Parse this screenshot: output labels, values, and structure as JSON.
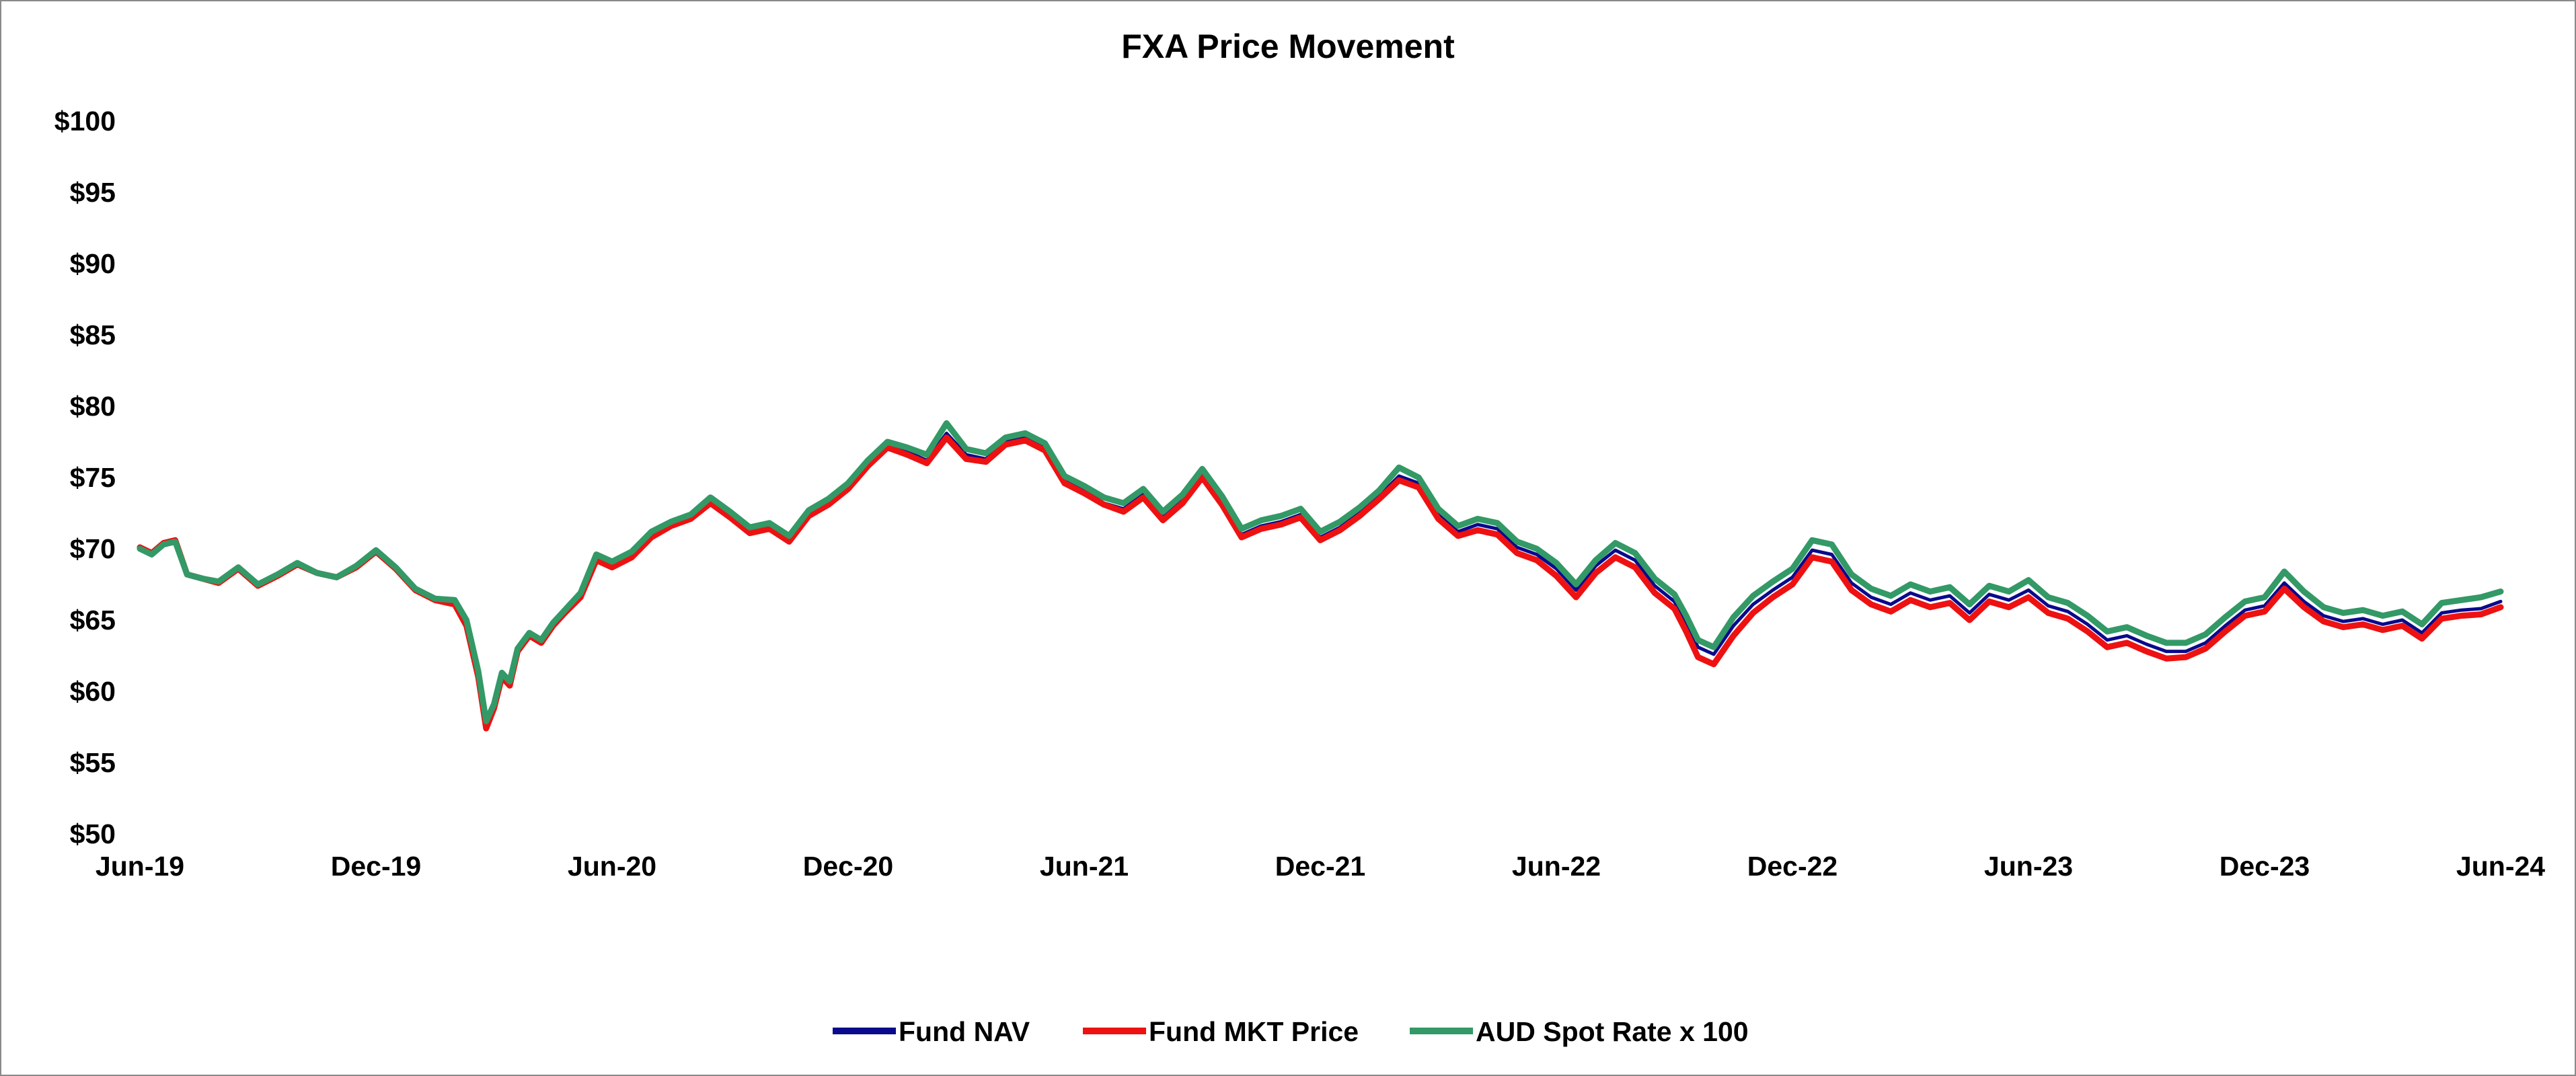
{
  "chart_data": {
    "type": "line",
    "title": "FXA Price Movement",
    "xlabel": "",
    "ylabel": "",
    "ylim": [
      50,
      100
    ],
    "y_ticks": [
      50,
      55,
      60,
      65,
      70,
      75,
      80,
      85,
      90,
      95,
      100
    ],
    "y_tick_labels": [
      "$50",
      "$55",
      "$60",
      "$65",
      "$70",
      "$75",
      "$80",
      "$85",
      "$90",
      "$95",
      "$100"
    ],
    "x_range": [
      0,
      60
    ],
    "x_ticks": [
      0,
      6,
      12,
      18,
      24,
      30,
      36,
      42,
      48,
      54,
      60
    ],
    "x_tick_labels": [
      "Jun-19",
      "Dec-19",
      "Jun-20",
      "Dec-20",
      "Jun-21",
      "Dec-21",
      "Jun-22",
      "Dec-22",
      "Jun-23",
      "Dec-23",
      "Jun-24"
    ],
    "x_unit": "months since Jun-19",
    "grid": false,
    "legend_position": "bottom",
    "series": [
      {
        "name": "Fund NAV",
        "color": "#0a0a8c",
        "x": [
          0,
          0.3,
          0.6,
          0.9,
          1.2,
          1.6,
          2.0,
          2.5,
          3.0,
          3.5,
          4.0,
          4.5,
          5.0,
          5.5,
          6.0,
          6.5,
          7.0,
          7.5,
          8.0,
          8.3,
          8.6,
          8.8,
          9.0,
          9.2,
          9.4,
          9.6,
          9.9,
          10.2,
          10.5,
          10.8,
          11.2,
          11.6,
          12.0,
          12.5,
          13.0,
          13.5,
          14.0,
          14.5,
          15.0,
          15.5,
          16.0,
          16.5,
          17.0,
          17.5,
          18.0,
          18.5,
          19.0,
          19.5,
          20.0,
          20.5,
          21.0,
          21.5,
          22.0,
          22.5,
          23.0,
          23.5,
          24.0,
          24.5,
          25.0,
          25.5,
          26.0,
          26.5,
          27.0,
          27.5,
          28.0,
          28.5,
          29.0,
          29.5,
          30.0,
          30.5,
          31.0,
          31.5,
          32.0,
          32.5,
          33.0,
          33.5,
          34.0,
          34.5,
          35.0,
          35.5,
          36.0,
          36.5,
          37.0,
          37.5,
          38.0,
          38.5,
          39.0,
          39.3,
          39.6,
          40.0,
          40.5,
          41.0,
          41.5,
          42.0,
          42.5,
          43.0,
          43.5,
          44.0,
          44.5,
          45.0,
          45.5,
          46.0,
          46.5,
          47.0,
          47.5,
          48.0,
          48.5,
          49.0,
          49.5,
          50.0,
          50.5,
          51.0,
          51.5,
          52.0,
          52.5,
          53.0,
          53.5,
          54.0,
          54.5,
          55.0,
          55.5,
          56.0,
          56.5,
          57.0,
          57.5,
          58.0,
          58.5,
          59.0,
          59.5,
          60.0
        ],
        "values": [
          70.0,
          69.6,
          70.3,
          70.5,
          68.2,
          67.9,
          67.7,
          68.6,
          67.4,
          68.1,
          68.9,
          68.3,
          68.0,
          68.7,
          69.8,
          68.6,
          67.1,
          66.4,
          66.2,
          64.8,
          61.2,
          57.6,
          58.9,
          61.1,
          60.5,
          62.8,
          63.9,
          63.4,
          64.6,
          65.5,
          66.6,
          69.3,
          68.8,
          69.5,
          70.9,
          71.6,
          72.1,
          73.3,
          72.3,
          71.2,
          71.5,
          70.6,
          72.4,
          73.2,
          74.3,
          75.9,
          77.2,
          76.8,
          76.2,
          78.1,
          76.6,
          76.3,
          77.5,
          77.8,
          77.1,
          74.8,
          74.1,
          73.2,
          72.8,
          73.8,
          72.2,
          73.4,
          75.2,
          73.3,
          71.0,
          71.6,
          71.9,
          72.4,
          70.8,
          71.5,
          72.5,
          73.7,
          75.1,
          74.6,
          72.4,
          71.2,
          71.7,
          71.4,
          70.1,
          69.6,
          68.6,
          67.1,
          68.8,
          69.9,
          69.2,
          67.4,
          66.3,
          64.8,
          63.1,
          62.6,
          64.6,
          66.1,
          67.1,
          68.0,
          69.9,
          69.6,
          67.6,
          66.6,
          66.1,
          66.9,
          66.4,
          66.7,
          65.5,
          66.8,
          66.4,
          67.1,
          66.0,
          65.6,
          64.7,
          63.6,
          63.9,
          63.3,
          62.8,
          62.8,
          63.4,
          64.6,
          65.7,
          66.0,
          67.6,
          66.3,
          65.3,
          64.9,
          65.1,
          64.7,
          65.0,
          64.1,
          65.5,
          65.7,
          65.8,
          66.3
        ],
        "stroke_width": 5
      },
      {
        "name": "Fund MKT Price",
        "color": "#ee1111",
        "x": [
          0,
          0.3,
          0.6,
          0.9,
          1.2,
          1.6,
          2.0,
          2.5,
          3.0,
          3.5,
          4.0,
          4.5,
          5.0,
          5.5,
          6.0,
          6.5,
          7.0,
          7.5,
          8.0,
          8.3,
          8.6,
          8.8,
          9.0,
          9.2,
          9.4,
          9.6,
          9.9,
          10.2,
          10.5,
          10.8,
          11.2,
          11.6,
          12.0,
          12.5,
          13.0,
          13.5,
          14.0,
          14.5,
          15.0,
          15.5,
          16.0,
          16.5,
          17.0,
          17.5,
          18.0,
          18.5,
          19.0,
          19.5,
          20.0,
          20.5,
          21.0,
          21.5,
          22.0,
          22.5,
          23.0,
          23.5,
          24.0,
          24.5,
          25.0,
          25.5,
          26.0,
          26.5,
          27.0,
          27.5,
          28.0,
          28.5,
          29.0,
          29.5,
          30.0,
          30.5,
          31.0,
          31.5,
          32.0,
          32.5,
          33.0,
          33.5,
          34.0,
          34.5,
          35.0,
          35.5,
          36.0,
          36.5,
          37.0,
          37.5,
          38.0,
          38.5,
          39.0,
          39.3,
          39.6,
          40.0,
          40.5,
          41.0,
          41.5,
          42.0,
          42.5,
          43.0,
          43.5,
          44.0,
          44.5,
          45.0,
          45.5,
          46.0,
          46.5,
          47.0,
          47.5,
          48.0,
          48.5,
          49.0,
          49.5,
          50.0,
          50.5,
          51.0,
          51.5,
          52.0,
          52.5,
          53.0,
          53.5,
          54.0,
          54.5,
          55.0,
          55.5,
          56.0,
          56.5,
          57.0,
          57.5,
          58.0,
          58.5,
          59.0,
          59.5,
          60.0
        ],
        "values": [
          70.1,
          69.7,
          70.4,
          70.6,
          68.2,
          67.9,
          67.6,
          68.6,
          67.4,
          68.1,
          68.9,
          68.3,
          68.0,
          68.7,
          69.8,
          68.6,
          67.1,
          66.4,
          66.1,
          64.6,
          61.0,
          57.4,
          58.8,
          61.0,
          60.4,
          62.8,
          63.9,
          63.4,
          64.6,
          65.5,
          66.6,
          69.2,
          68.7,
          69.4,
          70.8,
          71.6,
          72.1,
          73.2,
          72.2,
          71.1,
          71.4,
          70.5,
          72.3,
          73.1,
          74.2,
          75.8,
          77.1,
          76.6,
          76.0,
          77.8,
          76.3,
          76.1,
          77.3,
          77.6,
          76.9,
          74.6,
          73.9,
          73.1,
          72.6,
          73.6,
          72.0,
          73.2,
          75.0,
          73.1,
          70.8,
          71.4,
          71.7,
          72.2,
          70.6,
          71.3,
          72.3,
          73.5,
          74.8,
          74.3,
          72.1,
          70.9,
          71.3,
          71.0,
          69.7,
          69.2,
          68.1,
          66.6,
          68.3,
          69.4,
          68.7,
          66.9,
          65.8,
          64.2,
          62.4,
          61.9,
          63.9,
          65.5,
          66.6,
          67.5,
          69.4,
          69.1,
          67.1,
          66.1,
          65.6,
          66.4,
          65.9,
          66.2,
          65.0,
          66.3,
          65.9,
          66.6,
          65.5,
          65.1,
          64.2,
          63.1,
          63.4,
          62.8,
          62.3,
          62.4,
          63.0,
          64.2,
          65.3,
          65.6,
          67.2,
          65.9,
          64.9,
          64.5,
          64.7,
          64.3,
          64.6,
          63.7,
          65.1,
          65.3,
          65.4,
          65.9
        ],
        "stroke_width": 9
      },
      {
        "name": "AUD Spot Rate x 100",
        "color": "#339966",
        "x": [
          0,
          0.3,
          0.6,
          0.9,
          1.2,
          1.6,
          2.0,
          2.5,
          3.0,
          3.5,
          4.0,
          4.5,
          5.0,
          5.5,
          6.0,
          6.5,
          7.0,
          7.5,
          8.0,
          8.3,
          8.6,
          8.8,
          9.0,
          9.2,
          9.4,
          9.6,
          9.9,
          10.2,
          10.5,
          10.8,
          11.2,
          11.6,
          12.0,
          12.5,
          13.0,
          13.5,
          14.0,
          14.5,
          15.0,
          15.5,
          16.0,
          16.5,
          17.0,
          17.5,
          18.0,
          18.5,
          19.0,
          19.5,
          20.0,
          20.5,
          21.0,
          21.5,
          22.0,
          22.5,
          23.0,
          23.5,
          24.0,
          24.5,
          25.0,
          25.5,
          26.0,
          26.5,
          27.0,
          27.5,
          28.0,
          28.5,
          29.0,
          29.5,
          30.0,
          30.5,
          31.0,
          31.5,
          32.0,
          32.5,
          33.0,
          33.5,
          34.0,
          34.5,
          35.0,
          35.5,
          36.0,
          36.5,
          37.0,
          37.5,
          38.0,
          38.5,
          39.0,
          39.3,
          39.6,
          40.0,
          40.5,
          41.0,
          41.5,
          42.0,
          42.5,
          43.0,
          43.5,
          44.0,
          44.5,
          45.0,
          45.5,
          46.0,
          46.5,
          47.0,
          47.5,
          48.0,
          48.5,
          49.0,
          49.5,
          50.0,
          50.5,
          51.0,
          51.5,
          52.0,
          52.5,
          53.0,
          53.5,
          54.0,
          54.5,
          55.0,
          55.5,
          56.0,
          56.5,
          57.0,
          57.5,
          58.0,
          58.5,
          59.0,
          59.5,
          60.0
        ],
        "values": [
          70.0,
          69.6,
          70.3,
          70.5,
          68.2,
          67.9,
          67.7,
          68.7,
          67.5,
          68.2,
          69.0,
          68.3,
          68.0,
          68.8,
          69.9,
          68.7,
          67.2,
          66.5,
          66.4,
          65.0,
          61.4,
          57.9,
          59.1,
          61.3,
          60.7,
          63.0,
          64.1,
          63.6,
          64.8,
          65.7,
          66.9,
          69.6,
          69.1,
          69.8,
          71.2,
          71.9,
          72.4,
          73.6,
          72.6,
          71.5,
          71.8,
          70.9,
          72.7,
          73.5,
          74.6,
          76.2,
          77.5,
          77.1,
          76.6,
          78.8,
          77.0,
          76.7,
          77.8,
          78.1,
          77.4,
          75.1,
          74.4,
          73.6,
          73.2,
          74.2,
          72.6,
          73.8,
          75.6,
          73.7,
          71.4,
          72.0,
          72.3,
          72.8,
          71.2,
          71.9,
          72.9,
          74.1,
          75.7,
          75.0,
          72.8,
          71.6,
          72.1,
          71.8,
          70.5,
          70.0,
          69.0,
          67.5,
          69.2,
          70.4,
          69.7,
          67.9,
          66.8,
          65.3,
          63.6,
          63.1,
          65.2,
          66.7,
          67.7,
          68.6,
          70.6,
          70.3,
          68.2,
          67.2,
          66.7,
          67.5,
          67.0,
          67.3,
          66.1,
          67.4,
          67.0,
          67.8,
          66.6,
          66.2,
          65.3,
          64.2,
          64.5,
          63.9,
          63.4,
          63.4,
          64.0,
          65.2,
          66.3,
          66.6,
          68.4,
          67.0,
          65.9,
          65.5,
          65.7,
          65.3,
          65.6,
          64.7,
          66.2,
          66.4,
          66.6,
          67.0
        ],
        "stroke_width": 9
      }
    ]
  }
}
